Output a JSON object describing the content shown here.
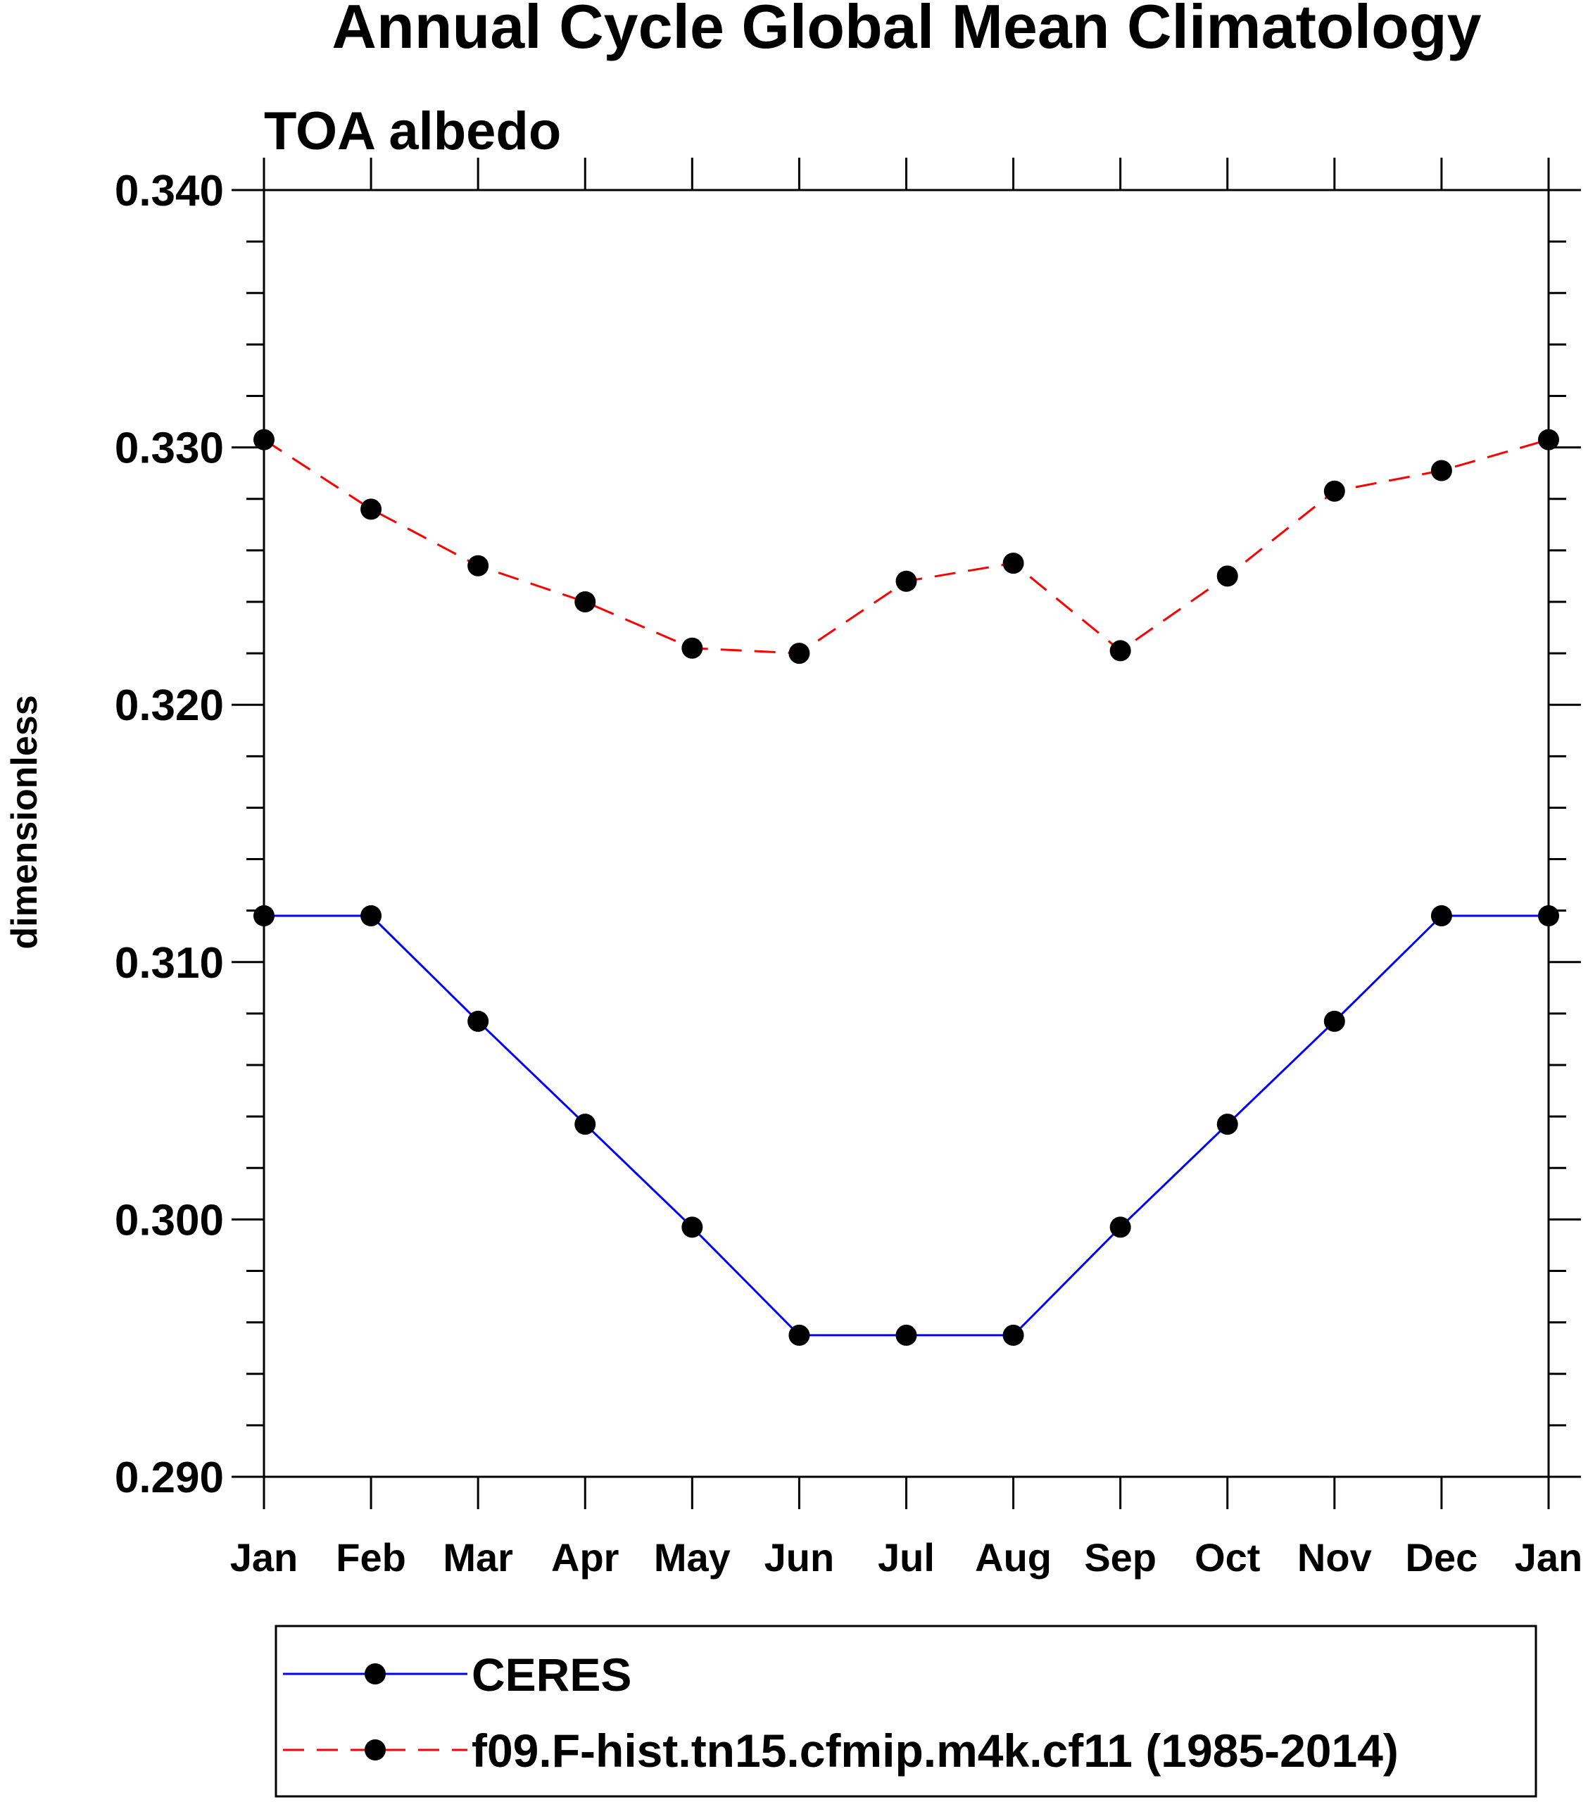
{
  "chart_data": {
    "type": "line",
    "title": "Annual Cycle Global Mean Climatology",
    "subtitle": "TOA albedo",
    "ylabel": "dimensionless",
    "xlabel": "",
    "ylim": [
      0.29,
      0.34
    ],
    "ytick_labels": [
      "0.290",
      "0.300",
      "0.310",
      "0.320",
      "0.330",
      "0.340"
    ],
    "categories": [
      "Jan",
      "Feb",
      "Mar",
      "Apr",
      "May",
      "Jun",
      "Jul",
      "Aug",
      "Sep",
      "Oct",
      "Nov",
      "Dec",
      "Jan"
    ],
    "series": [
      {
        "name": "CERES",
        "color": "#0000ff",
        "dash": "solid",
        "marker": "circle",
        "values": [
          0.3118,
          0.3118,
          0.3077,
          0.3037,
          0.2997,
          0.2955,
          0.2955,
          0.2955,
          0.2997,
          0.3037,
          0.3077,
          0.3118,
          0.3118
        ]
      },
      {
        "name": "f09.F-hist.tn15.cfmip.m4k.cf11 (1985-2014)",
        "color": "#ff0000",
        "dash": "dashed",
        "marker": "circle",
        "values": [
          0.3303,
          0.3276,
          0.3254,
          0.324,
          0.3222,
          0.322,
          0.3248,
          0.3255,
          0.3221,
          0.325,
          0.3283,
          0.3291,
          0.3303
        ]
      }
    ],
    "legend": "bottom"
  }
}
